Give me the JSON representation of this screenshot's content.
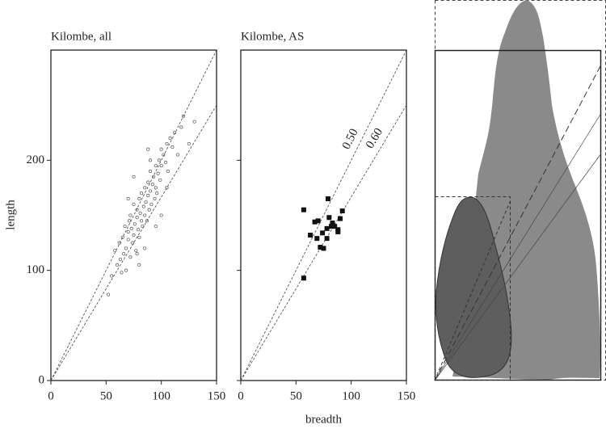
{
  "chart_data": [
    {
      "type": "scatter",
      "title": "Kilombe, all",
      "ylabel": "length",
      "x": [
        55,
        58,
        60,
        62,
        63,
        65,
        66,
        67,
        68,
        68,
        70,
        70,
        71,
        72,
        72,
        73,
        74,
        75,
        75,
        76,
        77,
        78,
        78,
        79,
        80,
        80,
        81,
        82,
        82,
        83,
        84,
        85,
        85,
        86,
        87,
        88,
        88,
        89,
        90,
        90,
        91,
        92,
        93,
        94,
        95,
        95,
        96,
        97,
        98,
        99,
        100,
        100,
        102,
        104,
        105,
        106,
        108,
        110,
        112,
        115,
        118,
        120,
        125,
        130,
        52,
        64,
        75,
        85,
        95,
        105,
        80,
        90,
        70,
        100,
        88,
        78
      ],
      "y": [
        95,
        118,
        105,
        125,
        110,
        130,
        115,
        140,
        120,
        100,
        135,
        128,
        145,
        112,
        150,
        138,
        125,
        132,
        160,
        142,
        118,
        148,
        155,
        137,
        165,
        130,
        152,
        145,
        170,
        140,
        158,
        175,
        150,
        162,
        145,
        168,
        180,
        155,
        172,
        190,
        160,
        178,
        185,
        165,
        195,
        175,
        170,
        188,
        200,
        182,
        210,
        195,
        205,
        198,
        215,
        190,
        220,
        212,
        225,
        205,
        230,
        240,
        215,
        235,
        78,
        98,
        185,
        120,
        140,
        175,
        105,
        200,
        165,
        150,
        210,
        115
      ],
      "marker": "circle",
      "color": "#555555",
      "ratio_lines": [
        0.5,
        0.6
      ],
      "xlim": [
        0,
        150
      ],
      "ylim": [
        0,
        300
      ],
      "xticks": [
        0,
        50,
        100,
        150
      ],
      "yticks": [
        0,
        100,
        200
      ],
      "ytick_labels": true
    },
    {
      "type": "scatter",
      "title": "Kilombe, AS",
      "xlabel": "breadth",
      "x": [
        57,
        79,
        92,
        67,
        70,
        80,
        90,
        83,
        78,
        82,
        88,
        63,
        69,
        74,
        78,
        72,
        75,
        57,
        88,
        85
      ],
      "y": [
        155,
        165,
        154,
        144,
        145,
        148,
        147,
        143,
        138,
        140,
        137,
        132,
        129,
        134,
        129,
        121,
        120,
        93,
        135,
        140
      ],
      "marker": "square",
      "color": "#111111",
      "ratio_lines": [
        {
          "value": 0.5,
          "label": "0.50"
        },
        {
          "value": 0.6,
          "label": "0.60"
        }
      ],
      "xlim": [
        0,
        150
      ],
      "ylim": [
        0,
        300
      ],
      "xticks": [
        0,
        50,
        100,
        150
      ],
      "yticks": [
        0,
        100,
        200
      ],
      "ytick_labels": false
    }
  ]
}
